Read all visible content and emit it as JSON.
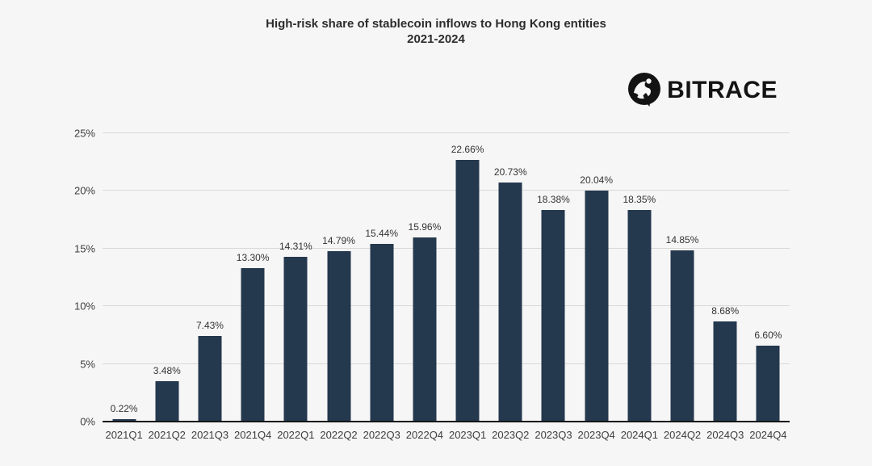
{
  "title": {
    "line1": "High-risk share of stablecoin inflows to Hong Kong entities",
    "line2": "2021-2024"
  },
  "logo": {
    "text": "BITRACE",
    "icon": "bitrace-circle-mark"
  },
  "colors": {
    "background": "#f6f6f6",
    "bar": "#24384e",
    "gridline": "#d9d9d9",
    "axis_line": "#151515",
    "title_text": "#2d2d2d",
    "tick_text": "#3d3d3d",
    "value_text": "#333333",
    "logo_text": "#131313"
  },
  "chart_data": {
    "type": "bar",
    "title": "High-risk share of stablecoin inflows to Hong Kong entities 2021-2024",
    "categories": [
      "2021Q1",
      "2021Q2",
      "2021Q3",
      "2021Q4",
      "2022Q1",
      "2022Q2",
      "2022Q3",
      "2022Q4",
      "2023Q1",
      "2023Q2",
      "2023Q3",
      "2023Q4",
      "2024Q1",
      "2024Q2",
      "2024Q3",
      "2024Q4"
    ],
    "values": [
      0.22,
      3.48,
      7.43,
      13.3,
      14.31,
      14.79,
      15.44,
      15.96,
      22.66,
      20.73,
      18.38,
      20.04,
      18.35,
      14.85,
      8.68,
      6.6
    ],
    "value_labels": [
      "0.22%",
      "3.48%",
      "7.43%",
      "13.30%",
      "14.31%",
      "14.79%",
      "15.44%",
      "15.96%",
      "22.66%",
      "20.73%",
      "18.38%",
      "20.04%",
      "18.35%",
      "14.85%",
      "8.68%",
      "6.60%"
    ],
    "xlabel": "",
    "ylabel": "",
    "ylim": [
      0,
      25
    ],
    "yticks": [
      {
        "value": 0,
        "label": "0%"
      },
      {
        "value": 5,
        "label": "5%"
      },
      {
        "value": 10,
        "label": "10%"
      },
      {
        "value": 15,
        "label": "15%"
      },
      {
        "value": 20,
        "label": "20%"
      },
      {
        "value": 25,
        "label": "25%"
      }
    ],
    "grid": true,
    "legend": false
  }
}
